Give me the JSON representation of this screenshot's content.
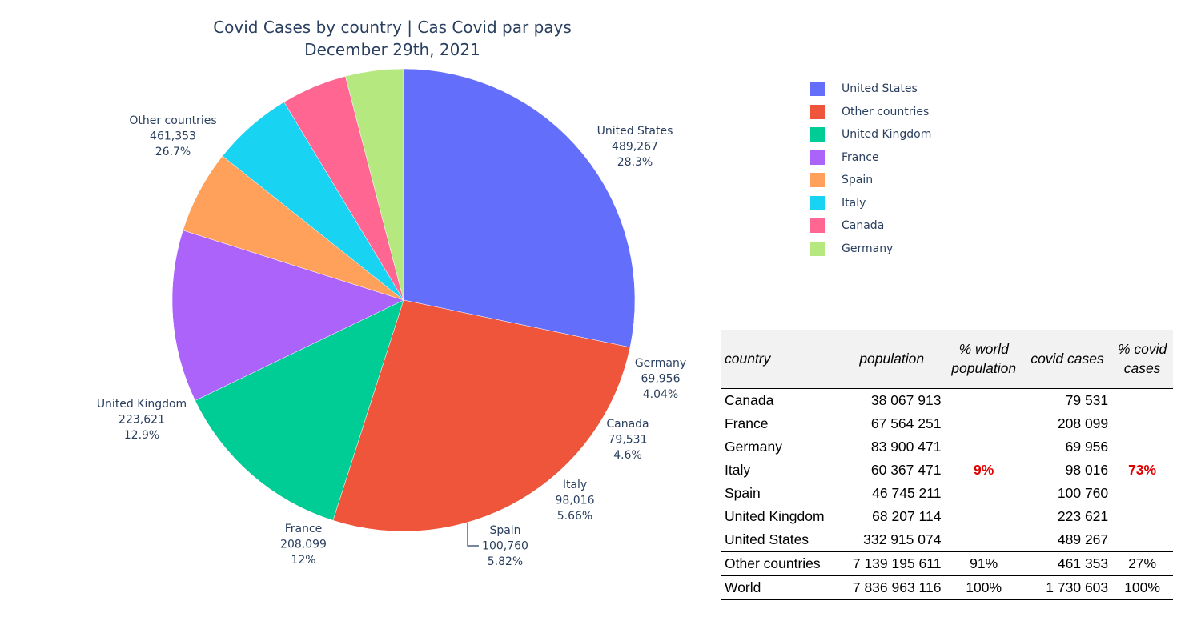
{
  "chart_data": {
    "type": "pie",
    "title": "Covid Cases by country | Cas Covid par pays",
    "subtitle": "December 29th, 2021",
    "legend_position": "top-right",
    "slices": [
      {
        "label": "United States",
        "value": 489267,
        "value_text": "489,267",
        "percent_text": "28.3%",
        "color": "#636efa"
      },
      {
        "label": "Other countries",
        "value": 461353,
        "value_text": "461,353",
        "percent_text": "26.7%",
        "color": "#ef553b"
      },
      {
        "label": "United Kingdom",
        "value": 223621,
        "value_text": "223,621",
        "percent_text": "12.9%",
        "color": "#00cc96"
      },
      {
        "label": "France",
        "value": 208099,
        "value_text": "208,099",
        "percent_text": "12%",
        "color": "#ab63fa"
      },
      {
        "label": "Spain",
        "value": 100760,
        "value_text": "100,760",
        "percent_text": "5.82%",
        "color": "#ffa15a"
      },
      {
        "label": "Italy",
        "value": 98016,
        "value_text": "98,016",
        "percent_text": "5.66%",
        "color": "#19d3f3"
      },
      {
        "label": "Canada",
        "value": 79531,
        "value_text": "79,531",
        "percent_text": "4.6%",
        "color": "#ff6692"
      },
      {
        "label": "Germany",
        "value": 69956,
        "value_text": "69,956",
        "percent_text": "4.04%",
        "color": "#b6e880"
      }
    ]
  },
  "table": {
    "headers": {
      "country": "country",
      "population": "population",
      "world_pop_line1": "% world",
      "world_pop_line2": "population",
      "covid_cases": "covid cases",
      "covid_pct_line1": "% covid",
      "covid_pct_line2": "cases"
    },
    "rows": [
      {
        "country": "Canada",
        "population": "38 067 913",
        "pct_world": "",
        "cases": "79 531",
        "pct_cases": ""
      },
      {
        "country": "France",
        "population": "67 564 251",
        "pct_world": "",
        "cases": "208 099",
        "pct_cases": ""
      },
      {
        "country": "Germany",
        "population": "83 900 471",
        "pct_world": "",
        "cases": "69 956",
        "pct_cases": ""
      },
      {
        "country": "Italy",
        "population": "60 367 471",
        "pct_world": "9%",
        "cases": "98 016",
        "pct_cases": "73%"
      },
      {
        "country": "Spain",
        "population": "46 745 211",
        "pct_world": "",
        "cases": "100 760",
        "pct_cases": ""
      },
      {
        "country": "United Kingdom",
        "population": "68 207 114",
        "pct_world": "",
        "cases": "223 621",
        "pct_cases": ""
      },
      {
        "country": "United States",
        "population": "332 915 074",
        "pct_world": "",
        "cases": "489 267",
        "pct_cases": ""
      },
      {
        "country": "Other countries",
        "population": "7 139 195 611",
        "pct_world": "91%",
        "cases": "461 353",
        "pct_cases": "27%"
      },
      {
        "country": "World",
        "population": "7 836 963 116",
        "pct_world": "100%",
        "cases": "1 730 603",
        "pct_cases": "100%"
      }
    ],
    "highlight_color": "#e00000"
  }
}
